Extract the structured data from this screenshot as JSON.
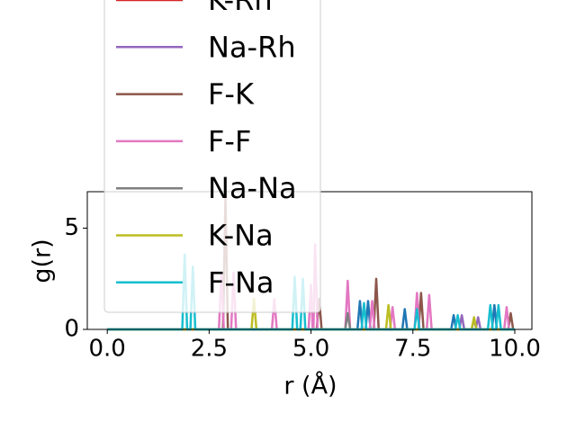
{
  "chart_data": {
    "type": "line",
    "xlabel": "r (Å)",
    "ylabel": "g(r)",
    "xlim": [
      -0.49,
      10.42
    ],
    "ylim": [
      0,
      6.8
    ],
    "xticks": [
      {
        "value": 0,
        "label": "0.0"
      },
      {
        "value": 2.5,
        "label": "2.5"
      },
      {
        "value": 5,
        "label": "5.0"
      },
      {
        "value": 7.5,
        "label": "7.5"
      },
      {
        "value": 10,
        "label": "10.0"
      }
    ],
    "yticks": [
      0,
      5
    ],
    "series": [
      {
        "color": "#1f77b4",
        "x": [
          0,
          6.14,
          6.2,
          6.26,
          6.34,
          6.4,
          6.46,
          7.24,
          7.3,
          7.36,
          8.44,
          8.5,
          8.56,
          9.44,
          9.5,
          9.56,
          10
        ],
        "values": [
          0,
          0,
          1.4,
          0,
          0,
          1.4,
          0,
          0,
          1.0,
          0,
          0,
          0.7,
          0,
          0,
          1.2,
          0,
          0
        ]
      },
      {
        "name": "K-Rh",
        "color": "#d62728",
        "x": [
          0,
          10
        ],
        "values": [
          0,
          0
        ]
      },
      {
        "name": "Na-Rh",
        "color": "#9467bd",
        "x": [
          0,
          8.64,
          8.7,
          8.76,
          9.04,
          9.1,
          9.16,
          10
        ],
        "values": [
          0,
          0,
          0.7,
          0,
          0,
          0.6,
          0,
          0
        ]
      },
      {
        "name": "F-K",
        "color": "#8c564b",
        "x": [
          0,
          2.84,
          2.9,
          2.96,
          5.14,
          5.2,
          5.26,
          6.54,
          6.6,
          6.66,
          7.64,
          7.7,
          7.76,
          9.84,
          9.9,
          9.96
        ],
        "values": [
          0,
          0,
          6.5,
          0,
          0,
          1.5,
          0,
          0,
          2.5,
          0,
          0,
          1.8,
          0,
          0,
          0.8,
          0
        ]
      },
      {
        "name": "F-F",
        "color": "#e377c2",
        "x": [
          0,
          2.74,
          2.8,
          2.86,
          3.04,
          3.1,
          3.16,
          4.04,
          4.1,
          4.16,
          4.94,
          5.0,
          5.04,
          5.06,
          5.1,
          5.16,
          5.84,
          5.9,
          5.96,
          6.44,
          6.5,
          6.56,
          6.94,
          7.0,
          7.06,
          7.54,
          7.6,
          7.66,
          7.84,
          7.9,
          7.96,
          9.74,
          9.8,
          9.86,
          10
        ],
        "values": [
          0,
          0,
          2.8,
          0,
          0,
          2.8,
          0,
          0,
          1.5,
          0,
          0,
          2.2,
          0,
          0,
          4.2,
          0,
          0,
          2.4,
          0,
          0,
          1.4,
          0,
          0,
          1.1,
          0,
          0,
          1.8,
          0,
          0,
          1.7,
          0,
          0,
          1.1,
          0,
          0
        ]
      },
      {
        "name": "Na-Na",
        "color": "#7f7f7f",
        "x": [
          0,
          5.84,
          5.9,
          5.96,
          8.94,
          9.0,
          9.06,
          10
        ],
        "values": [
          0,
          0,
          0.8,
          0,
          0,
          0.5,
          0,
          0
        ]
      },
      {
        "name": "K-Na",
        "color": "#bcbd22",
        "x": [
          0,
          3.54,
          3.6,
          3.66,
          6.84,
          6.9,
          6.96,
          8.94,
          9.0,
          9.06,
          10
        ],
        "values": [
          0,
          0,
          1.5,
          0,
          0,
          1.2,
          0,
          0,
          0.6,
          0,
          0
        ]
      },
      {
        "name": "F-Na",
        "color": "#17becf",
        "x": [
          0,
          1.84,
          1.9,
          1.96,
          2.04,
          2.1,
          2.16,
          4.54,
          4.6,
          4.66,
          4.74,
          4.8,
          4.86,
          6.24,
          6.3,
          6.36,
          7.54,
          7.6,
          7.66,
          8.54,
          8.6,
          8.66,
          9.34,
          9.4,
          9.46,
          9.54,
          9.6,
          9.66,
          10
        ],
        "values": [
          0,
          0,
          3.7,
          0,
          0,
          3.1,
          0,
          0,
          2.6,
          0,
          0,
          2.5,
          0,
          0,
          1.3,
          0,
          0,
          1.0,
          0,
          0,
          0.7,
          0,
          0,
          1.2,
          0,
          0,
          1.2,
          0,
          0
        ]
      }
    ]
  }
}
